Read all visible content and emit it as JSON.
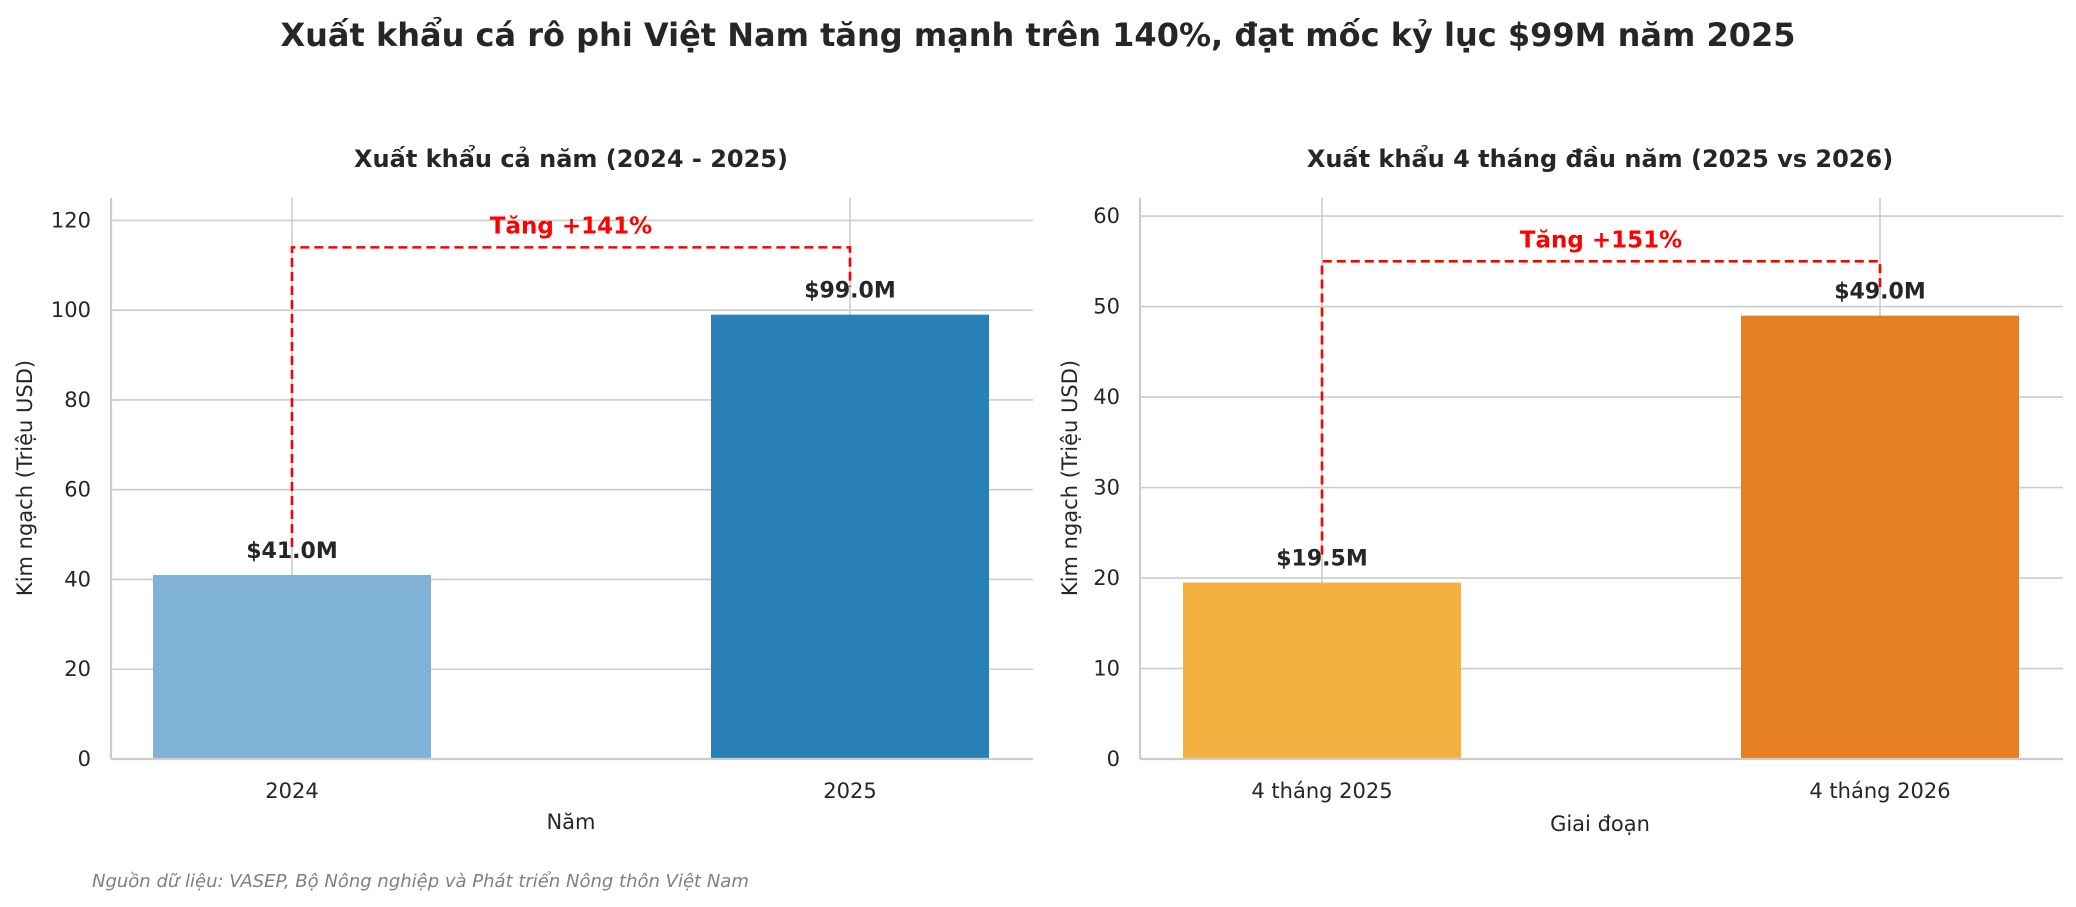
{
  "figure": {
    "title": "Xuất khẩu cá rô phi Việt Nam tăng mạnh trên 140%, đạt mốc kỷ lục $99M năm 2025",
    "source_note": "Nguồn dữ liệu: VASEP, Bộ Nông nghiệp và Phát triển Nông thôn Việt Nam",
    "colors": {
      "grid": "#cccccc",
      "annotation": "#ff0000",
      "axis_spine": "#cccccc"
    }
  },
  "chart_data": [
    {
      "type": "bar",
      "title": "Xuất khẩu cả năm (2024 - 2025)",
      "xlabel": "Năm",
      "ylabel": "Kim ngạch (Triệu USD)",
      "categories": [
        "2024",
        "2025"
      ],
      "values": [
        41.0,
        99.0
      ],
      "value_labels": [
        "$41.0M",
        "$99.0M"
      ],
      "colors": [
        "#7fb2d5",
        "#2a80b9"
      ],
      "ylim": [
        0,
        125
      ],
      "yticks": [
        0,
        20,
        40,
        60,
        80,
        100,
        120
      ],
      "grid": true,
      "annotation": {
        "text": "Tăng +141%",
        "bracket_y": 114
      }
    },
    {
      "type": "bar",
      "title": "Xuất khẩu 4 tháng đầu năm (2025 vs 2026)",
      "xlabel": "Giai đoạn",
      "ylabel": "Kim ngạch (Triệu USD)",
      "categories": [
        "4 tháng 2025",
        "4 tháng 2026"
      ],
      "values": [
        19.5,
        49.0
      ],
      "value_labels": [
        "$19.5M",
        "$49.0M"
      ],
      "colors": [
        "#f5b042",
        "#e67f22"
      ],
      "ylim": [
        0,
        62
      ],
      "yticks": [
        0,
        10,
        20,
        30,
        40,
        50,
        60
      ],
      "grid": true,
      "annotation": {
        "text": "Tăng +151%",
        "bracket_y": 55
      }
    }
  ]
}
